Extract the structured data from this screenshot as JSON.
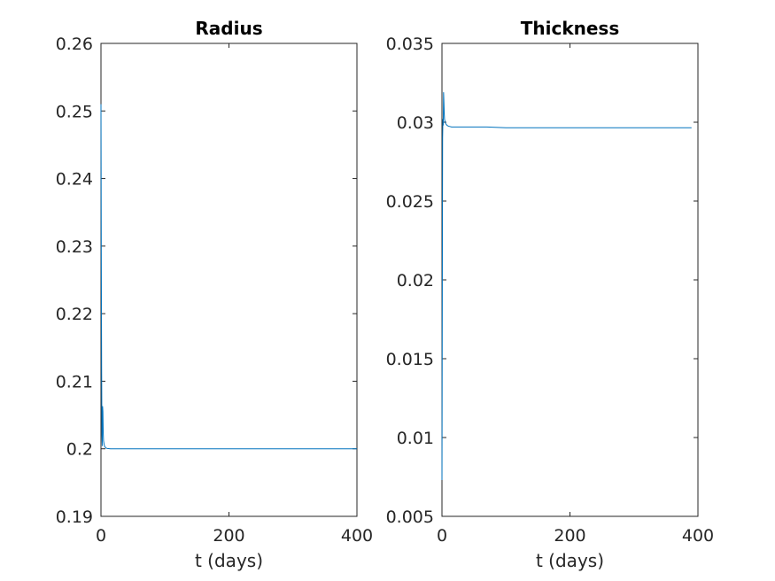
{
  "chart_data": [
    {
      "type": "line",
      "title": "Radius",
      "xlabel": "t (days)",
      "ylabel": "",
      "xlim": [
        0,
        400
      ],
      "ylim": [
        0.19,
        0.26
      ],
      "xticks": [
        0,
        200,
        400
      ],
      "xtick_labels": [
        "0",
        "200",
        "400"
      ],
      "yticks": [
        0.19,
        0.2,
        0.21,
        0.22,
        0.23,
        0.24,
        0.25,
        0.26
      ],
      "ytick_labels": [
        "0.19",
        "0.2",
        "0.21",
        "0.22",
        "0.23",
        "0.24",
        "0.25",
        "0.26"
      ],
      "grid": false,
      "series": [
        {
          "color": "#0072BD",
          "x": [
            0,
            0.5,
            1,
            1.5,
            2,
            2.5,
            3,
            3.5,
            4,
            5,
            6,
            7,
            8,
            10,
            15,
            30,
            100,
            200,
            300,
            400
          ],
          "y": [
            0.251,
            0.229,
            0.212,
            0.202,
            0.2004,
            0.2063,
            0.2055,
            0.2025,
            0.2012,
            0.2006,
            0.2003,
            0.2002,
            0.2001,
            0.20005,
            0.2,
            0.2,
            0.2,
            0.2,
            0.2,
            0.2
          ]
        }
      ]
    },
    {
      "type": "line",
      "title": "Thickness",
      "xlabel": "t (days)",
      "ylabel": "",
      "xlim": [
        0,
        400
      ],
      "ylim": [
        0.005,
        0.035
      ],
      "xticks": [
        0,
        200,
        400
      ],
      "xtick_labels": [
        "0",
        "200",
        "400"
      ],
      "yticks": [
        0.005,
        0.01,
        0.015,
        0.02,
        0.025,
        0.03,
        0.035
      ],
      "ytick_labels": [
        "0.005",
        "0.01",
        "0.015",
        "0.02",
        "0.025",
        "0.03",
        "0.035"
      ],
      "grid": false,
      "series": [
        {
          "color": "#0072BD",
          "x": [
            0,
            0.5,
            1,
            1.5,
            2,
            2.5,
            3,
            3.5,
            4,
            5,
            6,
            7,
            8,
            10,
            15,
            30,
            70,
            100,
            200,
            300,
            390
          ],
          "y": [
            0.0073,
            0.018,
            0.029,
            0.0302,
            0.0298,
            0.0319,
            0.0313,
            0.0306,
            0.0302,
            0.03,
            0.0299,
            0.02985,
            0.0298,
            0.02975,
            0.0297,
            0.0297,
            0.0297,
            0.02965,
            0.02965,
            0.02965,
            0.02965
          ]
        }
      ]
    }
  ]
}
